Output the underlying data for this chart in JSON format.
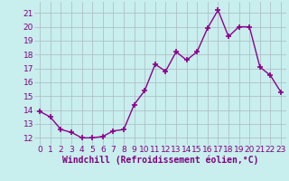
{
  "x": [
    0,
    1,
    2,
    3,
    4,
    5,
    6,
    7,
    8,
    9,
    10,
    11,
    12,
    13,
    14,
    15,
    16,
    17,
    18,
    19,
    20,
    21,
    22,
    23
  ],
  "y": [
    13.9,
    13.5,
    12.6,
    12.4,
    12.0,
    12.0,
    12.1,
    12.5,
    12.6,
    14.4,
    15.4,
    17.3,
    16.8,
    18.2,
    17.6,
    18.2,
    19.9,
    21.2,
    19.3,
    20.0,
    20.0,
    17.1,
    16.5,
    15.3
  ],
  "line_color": "#8B008B",
  "marker": "+",
  "marker_size": 4,
  "line_width": 1.0,
  "bg_color": "#c8eeed",
  "grid_color": "#aab8c2",
  "xlabel": "Windchill (Refroidissement éolien,°C)",
  "xlabel_fontsize": 7.0,
  "tick_fontsize": 6.5,
  "label_color": "#800080",
  "ylim": [
    11.5,
    21.8
  ],
  "yticks": [
    12,
    13,
    14,
    15,
    16,
    17,
    18,
    19,
    20,
    21
  ],
  "xticks": [
    0,
    1,
    2,
    3,
    4,
    5,
    6,
    7,
    8,
    9,
    10,
    11,
    12,
    13,
    14,
    15,
    16,
    17,
    18,
    19,
    20,
    21,
    22,
    23
  ]
}
